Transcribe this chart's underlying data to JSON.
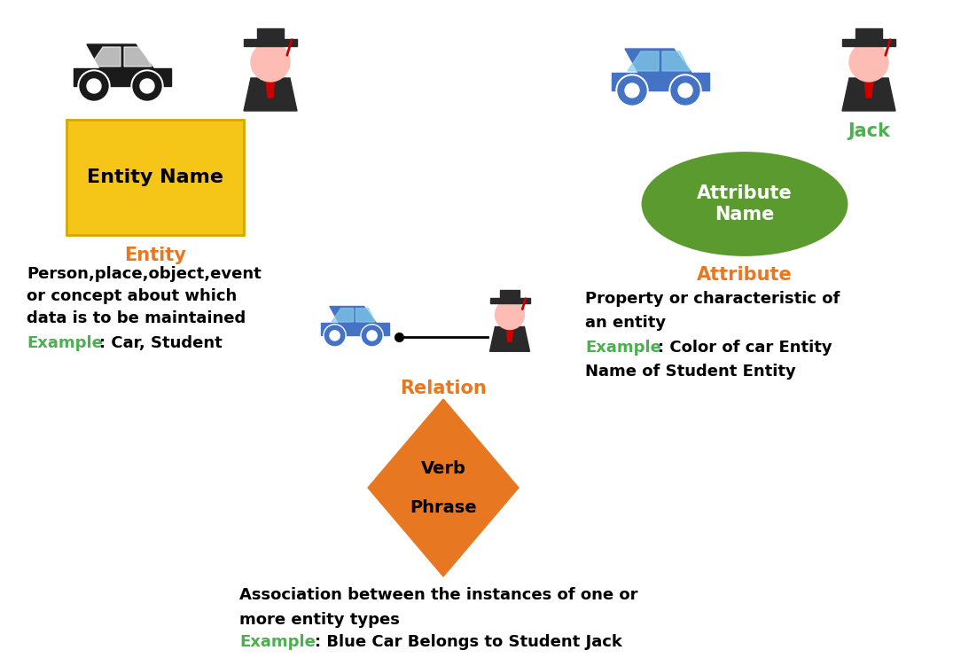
{
  "bg_color": "#ffffff",
  "orange_color": "#E87722",
  "green_color": "#4CAF50",
  "entity_box_facecolor": "#F5C518",
  "entity_box_edgecolor": "#D4A800",
  "attribute_ellipse_color": "#5B9A2E",
  "car_black": "#1a1a1a",
  "car_blue": "#4472C4",
  "diamond_color": "#E87722",
  "entity_box_text": "Entity Name",
  "entity_label": "Entity",
  "entity_desc1": "Person,place,object,event",
  "entity_desc2": "or concept about which",
  "entity_desc3": "data is to be maintained",
  "entity_example_label": "Example",
  "entity_example_text": ": Car, Student",
  "attribute_ellipse_text": "Attribute\nName",
  "attribute_label": "Attribute",
  "attribute_desc1": "Property or characteristic of",
  "attribute_desc2": "an entity",
  "attribute_example_label": "Example",
  "attribute_example_text1": ": Color of car Entity",
  "attribute_example_text2": "Name of Student Entity",
  "jack_label": "Jack",
  "relation_label": "Relation",
  "relation_desc1": "Association between the instances of one or",
  "relation_desc2": "more entity types",
  "relation_example_label": "Example",
  "relation_example_text": ": Blue Car Belongs to Student Jack"
}
